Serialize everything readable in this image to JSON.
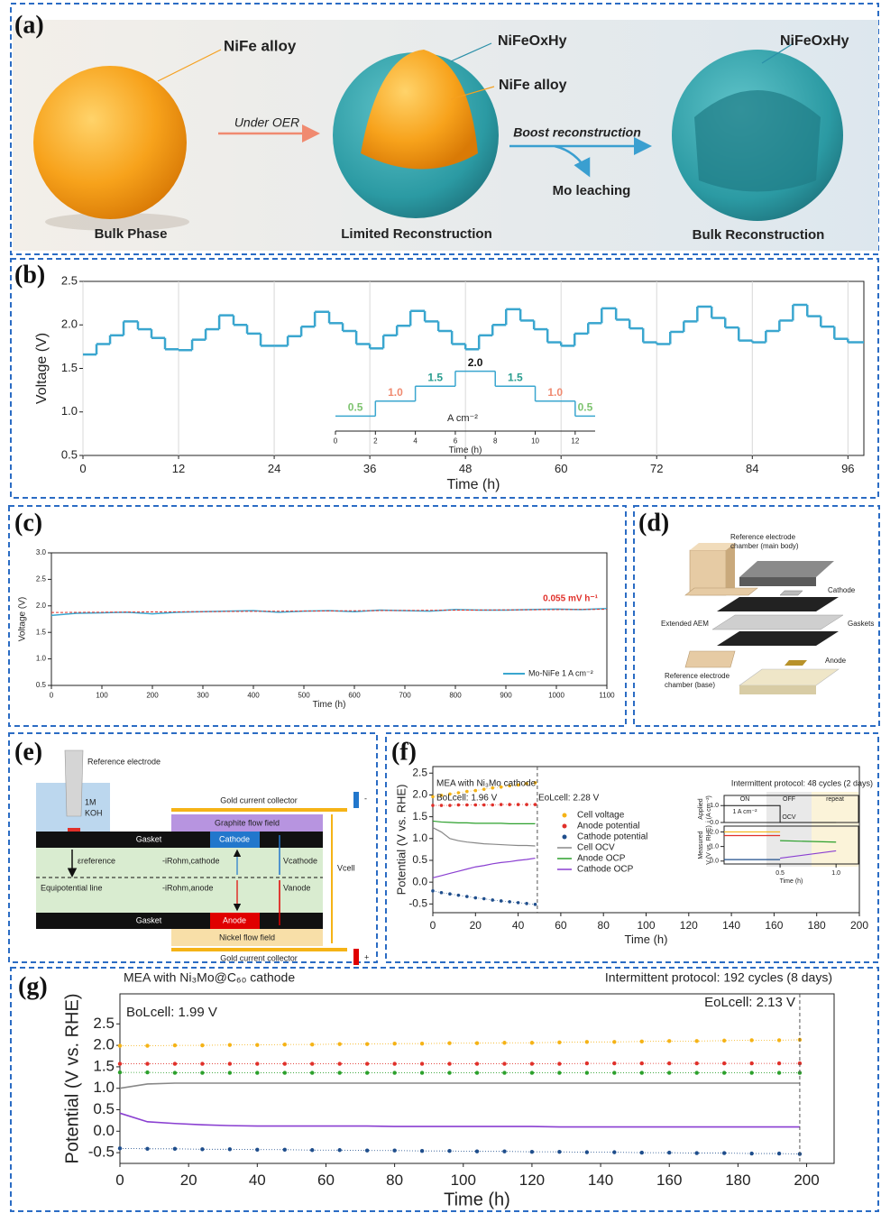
{
  "chart_data": [
    {
      "type": "line",
      "panel_label": "(b)",
      "step": true,
      "grid": true,
      "xlabel": "Time (h)",
      "ylabel": "Voltage (V)",
      "xlim": [
        0,
        98
      ],
      "ylim": [
        0.5,
        2.5
      ],
      "xticks": [
        0,
        12,
        24,
        36,
        48,
        60,
        72,
        84,
        96
      ],
      "yticks": [
        {
          "value": 0.5,
          "label": "0.5"
        },
        {
          "value": 1,
          "label": "1.0"
        },
        {
          "value": 1.5,
          "label": "1.5"
        },
        {
          "value": 2,
          "label": "2.0"
        },
        {
          "value": 2.5,
          "label": "2.5"
        }
      ],
      "x": [
        0,
        1.7,
        3.4,
        5.1,
        6.9,
        8.6,
        10.3,
        12,
        13.7,
        15.4,
        17.1,
        18.9,
        20.6,
        22.3,
        24,
        25.7,
        27.4,
        29.1,
        30.9,
        32.6,
        34.3,
        36,
        37.7,
        39.4,
        41.1,
        42.9,
        44.6,
        46.3,
        48,
        49.7,
        51.4,
        53.1,
        54.9,
        56.6,
        58.3,
        60,
        61.7,
        63.4,
        65.1,
        66.9,
        68.6,
        70.3,
        72,
        73.7,
        75.4,
        77.1,
        78.9,
        80.6,
        82.3,
        84,
        85.7,
        87.4,
        89.1,
        90.9,
        92.6,
        94.3,
        96
      ],
      "series": [
        {
          "color": "#3aa6cf",
          "values": [
            1.66,
            1.78,
            1.88,
            2.04,
            1.95,
            1.85,
            1.72,
            1.71,
            1.83,
            1.95,
            2.11,
            2.0,
            1.9,
            1.76,
            1.76,
            1.87,
            1.98,
            2.15,
            2.02,
            1.93,
            1.78,
            1.73,
            1.88,
            1.99,
            2.16,
            2.04,
            1.93,
            1.78,
            1.72,
            1.88,
            2.0,
            2.18,
            2.05,
            1.95,
            1.8,
            1.76,
            1.9,
            2.02,
            2.19,
            2.06,
            1.96,
            1.8,
            1.78,
            1.92,
            2.04,
            2.21,
            2.08,
            1.97,
            1.82,
            1.8,
            1.93,
            2.05,
            2.23,
            2.1,
            1.98,
            1.84,
            1.8
          ]
        }
      ],
      "inset": {
        "type": "line",
        "step": true,
        "xlabel": "Time (h)",
        "unit_label": "A cm⁻²",
        "xlim": [
          0,
          13
        ],
        "ylim": [
          0,
          2.5
        ],
        "xticks": [
          0,
          2,
          4,
          6,
          8,
          10,
          12
        ],
        "x": [
          0,
          2,
          4,
          6,
          8,
          10,
          12
        ],
        "series": [
          {
            "color": "#3aa6cf",
            "values": [
              0.5,
              1,
              1.5,
              2,
              1.5,
              1,
              0.5
            ],
            "value_labels": [
              "0.5",
              "1.0",
              "1.5",
              "2.0",
              "1.5",
              "1.0",
              "0.5"
            ],
            "label_colors": [
              "#7dc36f",
              "#f08a70",
              "#2a9d8f",
              "#111111",
              "#2a9d8f",
              "#f08a70",
              "#7dc36f"
            ]
          }
        ]
      }
    },
    {
      "type": "line",
      "panel_label": "(c)",
      "xlabel": "Time (h)",
      "ylabel": "Voltage (V)",
      "xlim": [
        0,
        1100
      ],
      "ylim": [
        0.5,
        3
      ],
      "xticks": [
        0,
        100,
        200,
        300,
        400,
        500,
        600,
        700,
        800,
        900,
        1000,
        1100
      ],
      "yticks": [
        {
          "value": 0.5,
          "label": "0.5"
        },
        {
          "value": 1,
          "label": "1.0"
        },
        {
          "value": 1.5,
          "label": "1.5"
        },
        {
          "value": 2,
          "label": "2.0"
        },
        {
          "value": 2.5,
          "label": "2.5"
        },
        {
          "value": 3,
          "label": "3.0"
        }
      ],
      "x": [
        0,
        50,
        100,
        150,
        200,
        250,
        300,
        350,
        400,
        450,
        500,
        550,
        600,
        650,
        700,
        750,
        800,
        850,
        900,
        950,
        1000,
        1050,
        1100
      ],
      "series": [
        {
          "name": "Mo-NiFe 1 A cm⁻²",
          "color": "#3aa6cf",
          "values": [
            1.82,
            1.86,
            1.87,
            1.88,
            1.85,
            1.88,
            1.89,
            1.9,
            1.91,
            1.88,
            1.9,
            1.91,
            1.89,
            1.92,
            1.91,
            1.9,
            1.93,
            1.92,
            1.92,
            1.93,
            1.94,
            1.93,
            1.95
          ]
        }
      ],
      "trend": {
        "x": [
          0,
          1100
        ],
        "values": [
          1.875,
          1.935
        ],
        "color": "#e0302a",
        "label": "0.055 mV h⁻¹"
      }
    },
    {
      "type": "line",
      "panel_label": "(f)",
      "title": "MEA with Ni₃Mo cathode",
      "bol_label": "BoLcell: 1.96 V",
      "eol_label": "EoLcell: 2.28 V",
      "vline": 49,
      "xlabel": "Time (h)",
      "ylabel": "Potential (V vs. RHE)",
      "xlim": [
        0,
        200
      ],
      "ylim": [
        -0.7,
        2.65
      ],
      "xticks": [
        0,
        20,
        40,
        60,
        80,
        100,
        120,
        140,
        160,
        180,
        200
      ],
      "yticks": [
        {
          "value": -0.5,
          "label": "-0.5"
        },
        {
          "value": 0,
          "label": "0.0"
        },
        {
          "value": 0.5,
          "label": "0.5"
        },
        {
          "value": 1,
          "label": "1.0"
        },
        {
          "value": 1.5,
          "label": "1.5"
        },
        {
          "value": 2,
          "label": "2.0"
        },
        {
          "value": 2.5,
          "label": "2.5"
        }
      ],
      "x": [
        0,
        4,
        8,
        12,
        16,
        20,
        24,
        28,
        32,
        36,
        40,
        44,
        48
      ],
      "series": [
        {
          "name": "Cell voltage",
          "color": "#f5b316",
          "style": "markers",
          "values": [
            1.96,
            1.99,
            2.02,
            2.05,
            2.08,
            2.1,
            2.13,
            2.16,
            2.18,
            2.21,
            2.23,
            2.26,
            2.28
          ]
        },
        {
          "name": "Anode potential",
          "color": "#e0302a",
          "style": "markers",
          "values": [
            1.76,
            1.76,
            1.76,
            1.77,
            1.77,
            1.77,
            1.77,
            1.77,
            1.78,
            1.78,
            1.78,
            1.78,
            1.78
          ]
        },
        {
          "name": "Cathode potential",
          "color": "#1f4e8c",
          "style": "markers",
          "values": [
            -0.2,
            -0.24,
            -0.27,
            -0.3,
            -0.33,
            -0.36,
            -0.38,
            -0.41,
            -0.43,
            -0.45,
            -0.47,
            -0.49,
            -0.51
          ]
        },
        {
          "name": "Cell OCV",
          "color": "#888888",
          "style": "line",
          "values": [
            1.25,
            1.15,
            1.0,
            0.95,
            0.92,
            0.9,
            0.88,
            0.87,
            0.86,
            0.85,
            0.84,
            0.84,
            0.83
          ]
        },
        {
          "name": "Anode OCP",
          "color": "#2ca02c",
          "style": "line",
          "values": [
            1.4,
            1.38,
            1.37,
            1.36,
            1.36,
            1.35,
            1.35,
            1.35,
            1.35,
            1.34,
            1.34,
            1.34,
            1.34
          ]
        },
        {
          "name": "Cathode OCP",
          "color": "#8a3fd1",
          "style": "line",
          "values": [
            0.1,
            0.15,
            0.2,
            0.25,
            0.3,
            0.35,
            0.38,
            0.42,
            0.45,
            0.47,
            0.5,
            0.52,
            0.55
          ]
        }
      ],
      "inset": {
        "title": "Intermittent protocol: 48 cycles (2 days)",
        "on": "ON",
        "off": "OFF",
        "repeat": "repeat",
        "current_label": "1 A cm⁻²",
        "ocv_label": "OCV",
        "applied": {
          "type": "line",
          "ylabel": [
            "Applied",
            "i (A cm⁻²)"
          ],
          "xlim": [
            0,
            1.2
          ],
          "ylim": [
            0,
            1.6
          ],
          "yticks": [
            {
              "value": 0,
              "label": "0.0"
            },
            {
              "value": 1,
              "label": "1.0"
            }
          ],
          "series": [
            {
              "color": "#111111",
              "style": "line",
              "x": [
                0,
                0.5,
                0.5,
                1.0
              ],
              "values": [
                1,
                1,
                0,
                0
              ]
            }
          ]
        },
        "measured": {
          "type": "line",
          "xlabel": "Time (h)",
          "ylabel": [
            "Measured",
            "V (V vs. RHE)"
          ],
          "xlim": [
            0,
            1.2
          ],
          "ylim": [
            -0.2,
            2.4
          ],
          "xticks": [
            0.5,
            {
              "value": 1,
              "label": "1.0"
            }
          ],
          "yticks": [
            {
              "value": 0,
              "label": "0.0"
            },
            {
              "value": 1,
              "label": "1.0"
            },
            {
              "value": 2,
              "label": "2.0"
            }
          ],
          "series": [
            {
              "color": "#f5b316",
              "style": "line",
              "x": [
                0,
                0.5
              ],
              "values": [
                2.0,
                2.0
              ]
            },
            {
              "color": "#e0302a",
              "style": "line",
              "x": [
                0,
                0.5
              ],
              "values": [
                1.75,
                1.75
              ]
            },
            {
              "color": "#1f4e8c",
              "style": "line",
              "x": [
                0,
                0.5
              ],
              "values": [
                0.1,
                0.1
              ]
            },
            {
              "color": "#2ca02c",
              "style": "line",
              "x": [
                0.5,
                1.0
              ],
              "values": [
                1.4,
                1.3
              ]
            },
            {
              "color": "#8a3fd1",
              "style": "line",
              "x": [
                0.5,
                1.0
              ],
              "values": [
                0.2,
                0.7
              ]
            }
          ]
        }
      }
    },
    {
      "type": "line",
      "panel_label": "(g)",
      "title": "MEA with Ni₃Mo@C₆₀ cathode",
      "protocol": "Intermittent protocol: 192 cycles (8 days)",
      "bol_label": "BoLcell: 1.99 V",
      "eol_label": "EoLcell: 2.13 V",
      "vline": 198,
      "xlabel": "Time (h)",
      "ylabel": "Potential (V vs. RHE)",
      "xlim": [
        0,
        208
      ],
      "ylim": [
        -0.75,
        3.2
      ],
      "xticks": [
        0,
        20,
        40,
        60,
        80,
        100,
        120,
        140,
        160,
        180,
        200
      ],
      "yticks": [
        {
          "value": -0.5,
          "label": "-0.5"
        },
        {
          "value": 0,
          "label": "0.0"
        },
        {
          "value": 0.5,
          "label": "0.5"
        },
        {
          "value": 1,
          "label": "1.0"
        },
        {
          "value": 1.5,
          "label": "1.5"
        },
        {
          "value": 2,
          "label": "2.0"
        },
        {
          "value": 2.5,
          "label": "2.5"
        }
      ],
      "x": [
        0,
        8,
        16,
        24,
        32,
        40,
        48,
        56,
        64,
        72,
        80,
        88,
        96,
        104,
        112,
        120,
        128,
        136,
        144,
        152,
        160,
        168,
        176,
        184,
        192,
        198
      ],
      "series": [
        {
          "color": "#f5b316",
          "style": "markers",
          "values": [
            1.99,
            1.99,
            2.0,
            2.0,
            2.01,
            2.01,
            2.02,
            2.02,
            2.03,
            2.03,
            2.04,
            2.04,
            2.05,
            2.05,
            2.06,
            2.06,
            2.07,
            2.08,
            2.08,
            2.09,
            2.1,
            2.1,
            2.11,
            2.12,
            2.12,
            2.13
          ]
        },
        {
          "color": "#e0302a",
          "style": "markers",
          "values": [
            1.57,
            1.57,
            1.57,
            1.57,
            1.57,
            1.57,
            1.57,
            1.57,
            1.57,
            1.57,
            1.57,
            1.57,
            1.57,
            1.57,
            1.57,
            1.57,
            1.57,
            1.58,
            1.58,
            1.58,
            1.58,
            1.58,
            1.58,
            1.58,
            1.58,
            1.58
          ]
        },
        {
          "color": "#888888",
          "style": "line",
          "values": [
            1.0,
            1.1,
            1.12,
            1.12,
            1.12,
            1.12,
            1.12,
            1.12,
            1.12,
            1.12,
            1.12,
            1.12,
            1.12,
            1.12,
            1.12,
            1.12,
            1.12,
            1.12,
            1.12,
            1.12,
            1.12,
            1.12,
            1.12,
            1.12,
            1.12,
            1.12
          ]
        },
        {
          "color": "#2ca02c",
          "style": "markers",
          "values": [
            1.37,
            1.37,
            1.36,
            1.36,
            1.36,
            1.36,
            1.36,
            1.36,
            1.36,
            1.36,
            1.36,
            1.36,
            1.36,
            1.36,
            1.36,
            1.36,
            1.36,
            1.36,
            1.36,
            1.36,
            1.36,
            1.36,
            1.36,
            1.36,
            1.36,
            1.36
          ]
        },
        {
          "color": "#8a3fd1",
          "style": "line",
          "values": [
            0.42,
            0.22,
            0.18,
            0.15,
            0.13,
            0.12,
            0.12,
            0.12,
            0.12,
            0.12,
            0.11,
            0.11,
            0.11,
            0.11,
            0.11,
            0.11,
            0.1,
            0.1,
            0.1,
            0.1,
            0.1,
            0.1,
            0.1,
            0.1,
            0.1,
            0.1
          ]
        },
        {
          "color": "#1f4e8c",
          "style": "markers",
          "values": [
            -0.4,
            -0.41,
            -0.41,
            -0.42,
            -0.42,
            -0.43,
            -0.43,
            -0.44,
            -0.44,
            -0.45,
            -0.45,
            -0.46,
            -0.46,
            -0.47,
            -0.47,
            -0.48,
            -0.48,
            -0.49,
            -0.49,
            -0.5,
            -0.5,
            -0.51,
            -0.51,
            -0.52,
            -0.52,
            -0.53
          ]
        }
      ]
    }
  ],
  "diagrams": {
    "a": {
      "panel_label": "(a)",
      "alloy_label": "NiFe alloy",
      "under_oer": "Under OER",
      "oxide_label_1": "NiFeOxHy",
      "alloy_label_2": "NiFe alloy",
      "boost": "Boost reconstruction",
      "mo_leaching": "Mo leaching",
      "oxide_label_2": "NiFeOxHy",
      "bulk_phase": "Bulk Phase",
      "limited": "Limited Reconstruction",
      "bulk_reconstruction": "Bulk Reconstruction"
    },
    "d": {
      "panel_label": "(d)",
      "ref_main": [
        "Reference electrode",
        "chamber (main body)"
      ],
      "cathode": "Cathode",
      "gaskets": "Gaskets",
      "aem": "Extended AEM",
      "anode": "Anode",
      "ref_base": [
        "Reference electrode",
        "chamber (base)"
      ]
    },
    "e": {
      "panel_label": "(e)",
      "reference_electrode": "Reference electrode",
      "koh": [
        "1M",
        "KOH"
      ],
      "gold_top": "Gold current collector",
      "graphite": "Graphite flow field",
      "gasket_top": "Gasket",
      "cathode": "Cathode",
      "eps_ref": "εreference",
      "ir_cathode": "-iRohm,cathode",
      "v_cathode": "Vcathode",
      "v_cell": "Vcell",
      "equipotential": "Equipotential line",
      "ir_anode": "-iRohm,anode",
      "v_anode": "Vanode",
      "gasket_bottom": "Gasket",
      "anode": "Anode",
      "nickel": "Nickel flow field",
      "gold_bottom": "Gold current collector",
      "minus": "-",
      "plus": "+"
    }
  }
}
